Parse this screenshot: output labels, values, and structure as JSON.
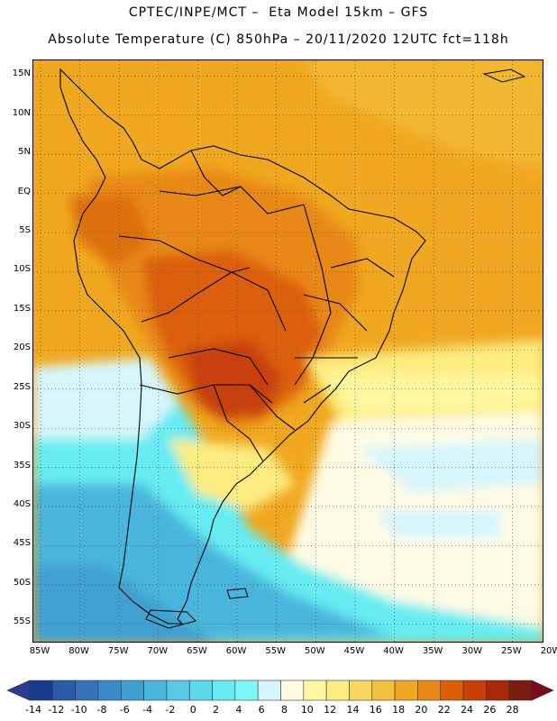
{
  "header": {
    "line1": "CPTEC/INPE/MCT –  Eta Model 15km – GFS",
    "line2": "Absolute Temperature (C) 850hPa – 20/11/2020 12UTC fct=118h"
  },
  "map": {
    "lat_labels": [
      "15N",
      "10N",
      "5N",
      "EQ",
      "5S",
      "10S",
      "15S",
      "20S",
      "25S",
      "30S",
      "35S",
      "40S",
      "45S",
      "50S",
      "55S"
    ],
    "lon_labels": [
      "85W",
      "80W",
      "75W",
      "70W",
      "65W",
      "60W",
      "55W",
      "50W",
      "45W",
      "40W",
      "35W",
      "30W",
      "25W",
      "20W"
    ]
  },
  "colorbar": {
    "labels": [
      "-14",
      "-12",
      "-10",
      "-8",
      "-6",
      "-4",
      "-2",
      "0",
      "2",
      "4",
      "6",
      "8",
      "10",
      "12",
      "14",
      "16",
      "18",
      "20",
      "22",
      "24",
      "26",
      "28"
    ],
    "colors": [
      "#1a3a8c",
      "#2a5aa8",
      "#3573b8",
      "#3a8ac8",
      "#3fa0d0",
      "#48b5dc",
      "#58c8e4",
      "#5ad8ec",
      "#66ecf2",
      "#7ff8fc",
      "#d6f6fc",
      "#fffbe4",
      "#fff8a0",
      "#fdec80",
      "#f8d860",
      "#f3c040",
      "#f0a820",
      "#e88818",
      "#dc5e08",
      "#c84008",
      "#a82808",
      "#7a1c10"
    ],
    "under_color": "#2a3a8c",
    "over_color": "#7a0a20"
  }
}
